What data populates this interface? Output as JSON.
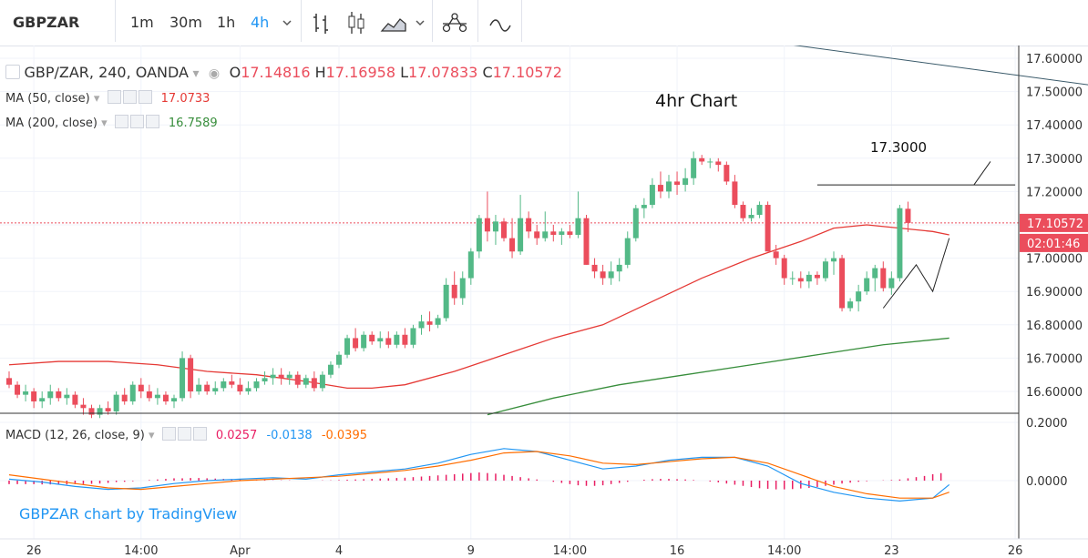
{
  "toolbar": {
    "symbol": "GBPZAR",
    "intervals": [
      "1m",
      "30m",
      "1h",
      "4h"
    ],
    "active_interval": "4h",
    "icons": [
      "chevron-down-icon",
      "bar-style-icon",
      "candle-style-icon",
      "area-style-icon",
      "chevron-down-icon",
      "indicators-icon",
      "compare-icon"
    ]
  },
  "legend": {
    "main": "GBP/ZAR, 240, OANDA",
    "o_label": "O",
    "o": "17.14816",
    "h_label": "H",
    "h": "17.16958",
    "l_label": "L",
    "l": "17.07833",
    "c_label": "C",
    "c": "17.10572",
    "ma50_label": "MA (50, close)",
    "ma50": "17.0733",
    "ma200_label": "MA (200, close)",
    "ma200": "16.7589",
    "macd_label": "MACD (12, 26, close, 9)",
    "macd_hist": "0.0257",
    "macd_line": "-0.0138",
    "macd_signal": "-0.0395"
  },
  "annotations": {
    "title": "4hr Chart",
    "level_label": "17.3000"
  },
  "watermark": "GBPZAR chart by TradingView",
  "colors": {
    "up": "#53b987",
    "down": "#eb4d5c",
    "ma50": "#e53935",
    "ma200": "#388e3c",
    "macd": "#2196f3",
    "signal": "#ff6d00",
    "hist": "#e91e63",
    "price_tag": "#eb4d5c"
  },
  "chart_data": [
    {
      "type": "candlestick",
      "title": "GBP/ZAR, 240, OANDA",
      "ylim": [
        16.55,
        17.64
      ],
      "yticks": [
        17.6,
        17.5,
        17.4,
        17.3,
        17.2,
        17.1,
        17.0,
        16.9,
        16.8,
        16.7,
        16.6
      ],
      "xticks": [
        {
          "i": 3,
          "label": "26"
        },
        {
          "i": 16,
          "label": "14:00"
        },
        {
          "i": 28,
          "label": "Apr"
        },
        {
          "i": 40,
          "label": "4"
        },
        {
          "i": 56,
          "label": "9"
        },
        {
          "i": 68,
          "label": "14:00"
        },
        {
          "i": 81,
          "label": "16"
        },
        {
          "i": 94,
          "label": "14:00"
        },
        {
          "i": 107,
          "label": "23"
        },
        {
          "i": 122,
          "label": "26"
        }
      ],
      "last_price": "17.10572",
      "countdown": "02:01:46",
      "candles": [
        [
          16.64,
          16.66,
          16.61,
          16.62
        ],
        [
          16.62,
          16.63,
          16.58,
          16.59
        ],
        [
          16.59,
          16.62,
          16.57,
          16.6
        ],
        [
          16.6,
          16.61,
          16.55,
          16.57
        ],
        [
          16.57,
          16.6,
          16.55,
          16.58
        ],
        [
          16.58,
          16.62,
          16.56,
          16.6
        ],
        [
          16.6,
          16.61,
          16.57,
          16.58
        ],
        [
          16.58,
          16.61,
          16.56,
          16.59
        ],
        [
          16.59,
          16.6,
          16.55,
          16.56
        ],
        [
          16.56,
          16.58,
          16.53,
          16.55
        ],
        [
          16.55,
          16.56,
          16.52,
          16.53
        ],
        [
          16.53,
          16.56,
          16.52,
          16.55
        ],
        [
          16.55,
          16.57,
          16.53,
          16.54
        ],
        [
          16.54,
          16.6,
          16.53,
          16.59
        ],
        [
          16.59,
          16.61,
          16.56,
          16.57
        ],
        [
          16.57,
          16.63,
          16.56,
          16.62
        ],
        [
          16.62,
          16.64,
          16.58,
          16.6
        ],
        [
          16.6,
          16.62,
          16.57,
          16.58
        ],
        [
          16.58,
          16.61,
          16.56,
          16.59
        ],
        [
          16.59,
          16.6,
          16.56,
          16.57
        ],
        [
          16.57,
          16.59,
          16.55,
          16.58
        ],
        [
          16.58,
          16.72,
          16.57,
          16.7
        ],
        [
          16.7,
          16.71,
          16.58,
          16.6
        ],
        [
          16.6,
          16.64,
          16.59,
          16.62
        ],
        [
          16.62,
          16.63,
          16.59,
          16.6
        ],
        [
          16.6,
          16.63,
          16.59,
          16.61
        ],
        [
          16.61,
          16.64,
          16.6,
          16.63
        ],
        [
          16.63,
          16.65,
          16.61,
          16.62
        ],
        [
          16.62,
          16.64,
          16.59,
          16.6
        ],
        [
          16.6,
          16.63,
          16.59,
          16.61
        ],
        [
          16.61,
          16.64,
          16.6,
          16.63
        ],
        [
          16.63,
          16.66,
          16.62,
          16.64
        ],
        [
          16.64,
          16.67,
          16.62,
          16.65
        ],
        [
          16.65,
          16.67,
          16.62,
          16.64
        ],
        [
          16.64,
          16.66,
          16.62,
          16.65
        ],
        [
          16.65,
          16.66,
          16.61,
          16.62
        ],
        [
          16.62,
          16.65,
          16.61,
          16.64
        ],
        [
          16.64,
          16.66,
          16.6,
          16.61
        ],
        [
          16.61,
          16.66,
          16.6,
          16.65
        ],
        [
          16.65,
          16.69,
          16.64,
          16.68
        ],
        [
          16.68,
          16.72,
          16.67,
          16.71
        ],
        [
          16.71,
          16.77,
          16.7,
          16.76
        ],
        [
          16.76,
          16.79,
          16.72,
          16.73
        ],
        [
          16.73,
          16.78,
          16.72,
          16.77
        ],
        [
          16.77,
          16.78,
          16.74,
          16.75
        ],
        [
          16.75,
          16.78,
          16.73,
          16.76
        ],
        [
          16.76,
          16.78,
          16.73,
          16.74
        ],
        [
          16.74,
          16.78,
          16.73,
          16.77
        ],
        [
          16.77,
          16.79,
          16.73,
          16.74
        ],
        [
          16.74,
          16.8,
          16.73,
          16.79
        ],
        [
          16.79,
          16.83,
          16.77,
          16.81
        ],
        [
          16.81,
          16.84,
          16.78,
          16.8
        ],
        [
          16.8,
          16.83,
          16.79,
          16.82
        ],
        [
          16.82,
          16.94,
          16.81,
          16.92
        ],
        [
          16.92,
          16.96,
          16.86,
          16.88
        ],
        [
          16.88,
          16.96,
          16.86,
          16.94
        ],
        [
          16.94,
          17.03,
          16.92,
          17.02
        ],
        [
          17.02,
          17.13,
          17.0,
          17.12
        ],
        [
          17.12,
          17.2,
          17.05,
          17.08
        ],
        [
          17.08,
          17.13,
          17.04,
          17.11
        ],
        [
          17.11,
          17.12,
          17.05,
          17.06
        ],
        [
          17.06,
          17.12,
          17.0,
          17.02
        ],
        [
          17.02,
          17.19,
          17.01,
          17.12
        ],
        [
          17.12,
          17.14,
          17.06,
          17.08
        ],
        [
          17.08,
          17.1,
          17.04,
          17.06
        ],
        [
          17.06,
          17.14,
          17.05,
          17.08
        ],
        [
          17.08,
          17.1,
          17.05,
          17.07
        ],
        [
          17.07,
          17.09,
          17.04,
          17.08
        ],
        [
          17.08,
          17.1,
          17.06,
          17.07
        ],
        [
          17.07,
          17.2,
          17.06,
          17.12
        ],
        [
          17.12,
          17.13,
          16.98,
          16.98
        ],
        [
          16.98,
          17.0,
          16.94,
          16.96
        ],
        [
          16.96,
          16.98,
          16.92,
          16.94
        ],
        [
          16.94,
          16.99,
          16.92,
          16.96
        ],
        [
          16.96,
          17.0,
          16.93,
          16.98
        ],
        [
          16.98,
          17.08,
          16.97,
          17.06
        ],
        [
          17.06,
          17.16,
          17.05,
          17.15
        ],
        [
          17.15,
          17.18,
          17.12,
          17.16
        ],
        [
          17.16,
          17.24,
          17.15,
          17.22
        ],
        [
          17.22,
          17.26,
          17.18,
          17.2
        ],
        [
          17.2,
          17.25,
          17.18,
          17.23
        ],
        [
          17.23,
          17.26,
          17.19,
          17.22
        ],
        [
          17.22,
          17.27,
          17.2,
          17.24
        ],
        [
          17.24,
          17.32,
          17.22,
          17.3
        ],
        [
          17.3,
          17.31,
          17.28,
          17.29
        ],
        [
          17.29,
          17.3,
          17.27,
          17.29
        ],
        [
          17.29,
          17.3,
          17.26,
          17.28
        ],
        [
          17.28,
          17.29,
          17.22,
          17.23
        ],
        [
          17.23,
          17.25,
          17.15,
          17.16
        ],
        [
          17.16,
          17.17,
          17.11,
          17.12
        ],
        [
          17.12,
          17.15,
          17.11,
          17.13
        ],
        [
          17.13,
          17.17,
          17.12,
          17.16
        ],
        [
          17.16,
          17.17,
          17.02,
          17.02
        ],
        [
          17.02,
          17.04,
          16.98,
          17.0
        ],
        [
          17.0,
          17.01,
          16.92,
          16.94
        ],
        [
          16.94,
          16.96,
          16.92,
          16.94
        ],
        [
          16.94,
          16.96,
          16.91,
          16.93
        ],
        [
          16.93,
          16.96,
          16.91,
          16.95
        ],
        [
          16.95,
          16.96,
          16.92,
          16.94
        ],
        [
          16.94,
          17.0,
          16.93,
          16.99
        ],
        [
          16.99,
          17.02,
          16.95,
          17.0
        ],
        [
          17.0,
          17.01,
          16.84,
          16.85
        ],
        [
          16.85,
          16.88,
          16.84,
          16.87
        ],
        [
          16.87,
          16.92,
          16.84,
          16.9
        ],
        [
          16.9,
          16.96,
          16.89,
          16.94
        ],
        [
          16.94,
          16.98,
          16.9,
          16.97
        ],
        [
          16.97,
          16.99,
          16.9,
          16.91
        ],
        [
          16.91,
          16.96,
          16.89,
          16.94
        ],
        [
          16.94,
          17.16,
          16.93,
          17.15
        ],
        [
          17.14816,
          17.16958,
          17.07833,
          17.10572
        ]
      ],
      "ma50": [
        [
          0,
          16.68
        ],
        [
          6,
          16.69
        ],
        [
          12,
          16.69
        ],
        [
          18,
          16.68
        ],
        [
          24,
          16.66
        ],
        [
          30,
          16.65
        ],
        [
          36,
          16.63
        ],
        [
          41,
          16.61
        ],
        [
          44,
          16.61
        ],
        [
          48,
          16.62
        ],
        [
          54,
          16.66
        ],
        [
          60,
          16.71
        ],
        [
          66,
          16.76
        ],
        [
          72,
          16.8
        ],
        [
          78,
          16.87
        ],
        [
          84,
          16.94
        ],
        [
          90,
          17.0
        ],
        [
          96,
          17.05
        ],
        [
          100,
          17.09
        ],
        [
          104,
          17.1
        ],
        [
          108,
          17.09
        ],
        [
          112,
          17.08
        ],
        [
          114,
          17.07
        ]
      ],
      "ma200": [
        [
          58,
          16.53
        ],
        [
          66,
          16.58
        ],
        [
          74,
          16.62
        ],
        [
          82,
          16.65
        ],
        [
          90,
          16.68
        ],
        [
          98,
          16.71
        ],
        [
          106,
          16.74
        ],
        [
          114,
          16.76
        ]
      ],
      "drawings": [
        {
          "kind": "trendline",
          "a": [
            95,
            17.64
          ],
          "b": [
            131,
            17.52
          ]
        },
        {
          "kind": "horizontal",
          "a": [
            98,
            17.22
          ],
          "b": [
            122,
            17.22
          ]
        },
        {
          "kind": "pointer",
          "a": [
            117,
            17.22
          ],
          "b": [
            119,
            17.29
          ]
        },
        {
          "kind": "pattern",
          "pts": [
            [
              106,
              16.85
            ],
            [
              110,
              16.98
            ],
            [
              112,
              16.9
            ],
            [
              114,
              17.06
            ]
          ]
        }
      ]
    },
    {
      "type": "macd",
      "title": "MACD (12, 26, close, 9)",
      "ylim": [
        -0.1,
        0.2
      ],
      "yticks": [
        0.2,
        0.0
      ],
      "macd": [
        [
          0,
          0.005
        ],
        [
          4,
          -0.005
        ],
        [
          8,
          -0.02
        ],
        [
          12,
          -0.03
        ],
        [
          16,
          -0.025
        ],
        [
          20,
          -0.01
        ],
        [
          24,
          0.0
        ],
        [
          28,
          0.005
        ],
        [
          32,
          0.01
        ],
        [
          36,
          0.005
        ],
        [
          40,
          0.02
        ],
        [
          44,
          0.03
        ],
        [
          48,
          0.04
        ],
        [
          52,
          0.06
        ],
        [
          56,
          0.09
        ],
        [
          60,
          0.11
        ],
        [
          64,
          0.1
        ],
        [
          68,
          0.07
        ],
        [
          72,
          0.04
        ],
        [
          76,
          0.05
        ],
        [
          80,
          0.07
        ],
        [
          84,
          0.08
        ],
        [
          88,
          0.08
        ],
        [
          92,
          0.05
        ],
        [
          96,
          -0.01
        ],
        [
          100,
          -0.04
        ],
        [
          104,
          -0.06
        ],
        [
          108,
          -0.07
        ],
        [
          112,
          -0.06
        ],
        [
          114,
          -0.0138
        ]
      ],
      "signal": [
        [
          0,
          0.02
        ],
        [
          4,
          0.005
        ],
        [
          8,
          -0.01
        ],
        [
          12,
          -0.025
        ],
        [
          16,
          -0.03
        ],
        [
          20,
          -0.02
        ],
        [
          24,
          -0.01
        ],
        [
          28,
          0.0
        ],
        [
          32,
          0.005
        ],
        [
          36,
          0.01
        ],
        [
          40,
          0.015
        ],
        [
          44,
          0.025
        ],
        [
          48,
          0.035
        ],
        [
          52,
          0.05
        ],
        [
          56,
          0.07
        ],
        [
          60,
          0.095
        ],
        [
          64,
          0.1
        ],
        [
          68,
          0.085
        ],
        [
          72,
          0.06
        ],
        [
          76,
          0.055
        ],
        [
          80,
          0.065
        ],
        [
          84,
          0.075
        ],
        [
          88,
          0.08
        ],
        [
          92,
          0.06
        ],
        [
          96,
          0.02
        ],
        [
          100,
          -0.02
        ],
        [
          104,
          -0.045
        ],
        [
          108,
          -0.06
        ],
        [
          112,
          -0.06
        ],
        [
          114,
          -0.0395
        ]
      ],
      "hist": [
        -0.012,
        -0.012,
        -0.012,
        -0.012,
        -0.013,
        -0.013,
        -0.013,
        -0.013,
        -0.012,
        -0.012,
        -0.011,
        -0.01,
        -0.008,
        -0.005,
        -0.004,
        -0.002,
        0.0,
        0.002,
        0.004,
        0.006,
        0.008,
        0.008,
        0.009,
        0.009,
        0.008,
        0.007,
        0.006,
        0.005,
        0.004,
        0.003,
        0.002,
        0.002,
        0.001,
        0.001,
        0.001,
        0.0,
        0.0,
        0.0,
        0.001,
        0.001,
        0.002,
        0.003,
        0.004,
        0.005,
        0.006,
        0.007,
        0.008,
        0.009,
        0.01,
        0.012,
        0.014,
        0.016,
        0.018,
        0.02,
        0.022,
        0.024,
        0.026,
        0.028,
        0.026,
        0.024,
        0.02,
        0.016,
        0.012,
        0.008,
        0.004,
        0.0,
        -0.004,
        -0.008,
        -0.012,
        -0.016,
        -0.018,
        -0.018,
        -0.016,
        -0.012,
        -0.008,
        -0.004,
        0.0,
        0.003,
        0.005,
        0.006,
        0.006,
        0.005,
        0.004,
        0.002,
        0.0,
        -0.003,
        -0.006,
        -0.01,
        -0.014,
        -0.018,
        -0.022,
        -0.026,
        -0.028,
        -0.03,
        -0.03,
        -0.029,
        -0.027,
        -0.025,
        -0.022,
        -0.018,
        -0.014,
        -0.01,
        -0.007,
        -0.004,
        -0.002,
        0.0,
        0.001,
        0.002,
        0.004,
        0.008,
        0.012,
        0.016,
        0.022,
        0.0257
      ]
    }
  ]
}
